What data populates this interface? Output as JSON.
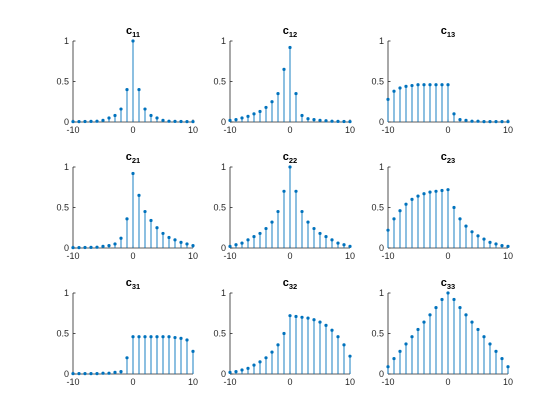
{
  "chart_data": [
    {
      "type": "stem",
      "title": "c",
      "title_subscript": "11",
      "xlim": [
        -10,
        10
      ],
      "ylim": [
        0,
        1
      ],
      "xticks": [
        "-10",
        "0",
        "10"
      ],
      "yticks": [
        "0",
        "0.5",
        "1"
      ],
      "x": [
        -10,
        -9,
        -8,
        -7,
        -6,
        -5,
        -4,
        -3,
        -2,
        -1,
        0,
        1,
        2,
        3,
        4,
        5,
        6,
        7,
        8,
        9,
        10
      ],
      "y": [
        0.005,
        0.005,
        0.006,
        0.008,
        0.01,
        0.02,
        0.05,
        0.08,
        0.16,
        0.4,
        1.0,
        0.4,
        0.16,
        0.08,
        0.05,
        0.02,
        0.01,
        0.008,
        0.006,
        0.005,
        0.005
      ]
    },
    {
      "type": "stem",
      "title": "c",
      "title_subscript": "12",
      "xlim": [
        -10,
        10
      ],
      "ylim": [
        0,
        1
      ],
      "xticks": [
        "-10",
        "0",
        "10"
      ],
      "yticks": [
        "0",
        "0.5",
        "1"
      ],
      "x": [
        -10,
        -9,
        -8,
        -7,
        -6,
        -5,
        -4,
        -3,
        -2,
        -1,
        0,
        1,
        2,
        3,
        4,
        5,
        6,
        7,
        8,
        9,
        10
      ],
      "y": [
        0.02,
        0.03,
        0.05,
        0.07,
        0.1,
        0.13,
        0.18,
        0.25,
        0.35,
        0.65,
        0.92,
        0.35,
        0.08,
        0.04,
        0.03,
        0.02,
        0.015,
        0.01,
        0.008,
        0.006,
        0.005
      ]
    },
    {
      "type": "stem",
      "title": "c",
      "title_subscript": "13",
      "xlim": [
        -10,
        10
      ],
      "ylim": [
        0,
        1
      ],
      "xticks": [
        "-10",
        "0",
        "10"
      ],
      "yticks": [
        "0",
        "0.5",
        "1"
      ],
      "x": [
        -10,
        -9,
        -8,
        -7,
        -6,
        -5,
        -4,
        -3,
        -2,
        -1,
        0,
        1,
        2,
        3,
        4,
        5,
        6,
        7,
        8,
        9,
        10
      ],
      "y": [
        0.28,
        0.38,
        0.42,
        0.44,
        0.45,
        0.46,
        0.46,
        0.46,
        0.46,
        0.46,
        0.46,
        0.1,
        0.03,
        0.02,
        0.01,
        0.01,
        0.005,
        0.005,
        0.005,
        0.005,
        0.005
      ]
    },
    {
      "type": "stem",
      "title": "c",
      "title_subscript": "21",
      "xlim": [
        -10,
        10
      ],
      "ylim": [
        0,
        1
      ],
      "xticks": [
        "-10",
        "0",
        "10"
      ],
      "yticks": [
        "0",
        "0.5",
        "1"
      ],
      "x": [
        -10,
        -9,
        -8,
        -7,
        -6,
        -5,
        -4,
        -3,
        -2,
        -1,
        0,
        1,
        2,
        3,
        4,
        5,
        6,
        7,
        8,
        9,
        10
      ],
      "y": [
        0.005,
        0.005,
        0.006,
        0.008,
        0.01,
        0.02,
        0.03,
        0.05,
        0.12,
        0.36,
        0.92,
        0.65,
        0.45,
        0.34,
        0.25,
        0.18,
        0.13,
        0.1,
        0.07,
        0.05,
        0.03
      ]
    },
    {
      "type": "stem",
      "title": "c",
      "title_subscript": "22",
      "xlim": [
        -10,
        10
      ],
      "ylim": [
        0,
        1
      ],
      "xticks": [
        "-10",
        "0",
        "10"
      ],
      "yticks": [
        "0",
        "0.5",
        "1"
      ],
      "x": [
        -10,
        -9,
        -8,
        -7,
        -6,
        -5,
        -4,
        -3,
        -2,
        -1,
        0,
        1,
        2,
        3,
        4,
        5,
        6,
        7,
        8,
        9,
        10
      ],
      "y": [
        0.02,
        0.04,
        0.06,
        0.1,
        0.14,
        0.18,
        0.24,
        0.32,
        0.45,
        0.7,
        1.0,
        0.7,
        0.45,
        0.32,
        0.24,
        0.18,
        0.14,
        0.1,
        0.06,
        0.04,
        0.02
      ]
    },
    {
      "type": "stem",
      "title": "c",
      "title_subscript": "23",
      "xlim": [
        -10,
        10
      ],
      "ylim": [
        0,
        1
      ],
      "xticks": [
        "-10",
        "0",
        "10"
      ],
      "yticks": [
        "0",
        "0.5",
        "1"
      ],
      "x": [
        -10,
        -9,
        -8,
        -7,
        -6,
        -5,
        -4,
        -3,
        -2,
        -1,
        0,
        1,
        2,
        3,
        4,
        5,
        6,
        7,
        8,
        9,
        10
      ],
      "y": [
        0.22,
        0.36,
        0.46,
        0.54,
        0.6,
        0.64,
        0.67,
        0.69,
        0.7,
        0.71,
        0.72,
        0.5,
        0.36,
        0.27,
        0.2,
        0.15,
        0.11,
        0.07,
        0.05,
        0.03,
        0.02
      ]
    },
    {
      "type": "stem",
      "title": "c",
      "title_subscript": "31",
      "xlim": [
        -10,
        10
      ],
      "ylim": [
        0,
        1
      ],
      "xticks": [
        "-10",
        "0",
        "10"
      ],
      "yticks": [
        "0",
        "0.5",
        "1"
      ],
      "x": [
        -10,
        -9,
        -8,
        -7,
        -6,
        -5,
        -4,
        -3,
        -2,
        -1,
        0,
        1,
        2,
        3,
        4,
        5,
        6,
        7,
        8,
        9,
        10
      ],
      "y": [
        0.005,
        0.005,
        0.005,
        0.005,
        0.005,
        0.01,
        0.01,
        0.02,
        0.03,
        0.2,
        0.46,
        0.46,
        0.46,
        0.46,
        0.46,
        0.46,
        0.46,
        0.45,
        0.44,
        0.42,
        0.28
      ]
    },
    {
      "type": "stem",
      "title": "c",
      "title_subscript": "32",
      "xlim": [
        -10,
        10
      ],
      "ylim": [
        0,
        1
      ],
      "xticks": [
        "-10",
        "0",
        "10"
      ],
      "yticks": [
        "0",
        "0.5",
        "1"
      ],
      "x": [
        -10,
        -9,
        -8,
        -7,
        -6,
        -5,
        -4,
        -3,
        -2,
        -1,
        0,
        1,
        2,
        3,
        4,
        5,
        6,
        7,
        8,
        9,
        10
      ],
      "y": [
        0.02,
        0.03,
        0.05,
        0.07,
        0.11,
        0.15,
        0.2,
        0.27,
        0.36,
        0.5,
        0.72,
        0.71,
        0.7,
        0.69,
        0.67,
        0.64,
        0.6,
        0.54,
        0.46,
        0.36,
        0.22
      ]
    },
    {
      "type": "stem",
      "title": "c",
      "title_subscript": "33",
      "xlim": [
        -10,
        10
      ],
      "ylim": [
        0,
        1
      ],
      "xticks": [
        "-10",
        "0",
        "10"
      ],
      "yticks": [
        "0",
        "0.5",
        "1"
      ],
      "x": [
        -10,
        -9,
        -8,
        -7,
        -6,
        -5,
        -4,
        -3,
        -2,
        -1,
        0,
        1,
        2,
        3,
        4,
        5,
        6,
        7,
        8,
        9,
        10
      ],
      "y": [
        0.09,
        0.19,
        0.28,
        0.37,
        0.46,
        0.55,
        0.64,
        0.73,
        0.82,
        0.92,
        1.0,
        0.92,
        0.82,
        0.73,
        0.64,
        0.55,
        0.46,
        0.37,
        0.28,
        0.19,
        0.09
      ]
    }
  ],
  "colors": {
    "stem": "#0072bd",
    "axis": "#262626"
  }
}
